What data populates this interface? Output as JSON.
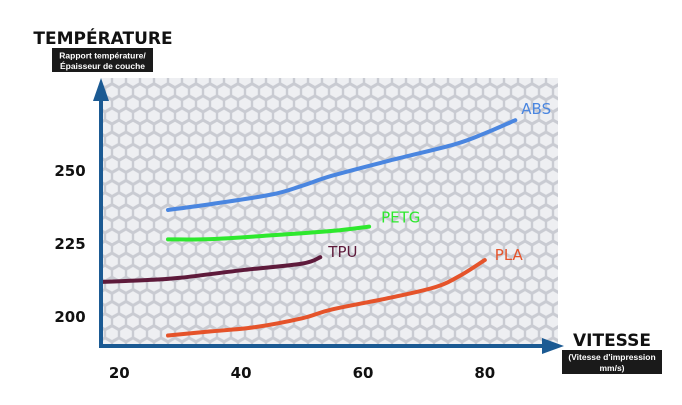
{
  "chart_data": {
    "type": "line",
    "ylabel": "TEMPÉRATURE",
    "ylabel_sub": [
      "Rapport température/",
      "Épaisseur de couche"
    ],
    "xlabel": "VITESSE",
    "xlabel_sub": [
      "(Vitesse d'impression",
      "mm/s)"
    ],
    "x_ticks": [
      20,
      40,
      60,
      80
    ],
    "y_ticks": [
      200,
      225,
      250
    ],
    "xlim": [
      17,
      93
    ],
    "ylim": [
      190,
      282
    ],
    "grid": false,
    "background": "hexagon-pattern",
    "series": [
      {
        "name": "ABS",
        "color": "#4a86e0",
        "points": [
          [
            28,
            236.7
          ],
          [
            35,
            238.7
          ],
          [
            45,
            242
          ],
          [
            50,
            245
          ],
          [
            55,
            248.5
          ],
          [
            65,
            254
          ],
          [
            75,
            259.2
          ],
          [
            80,
            263
          ],
          [
            85,
            267.5
          ]
        ]
      },
      {
        "name": "PETG",
        "color": "#2ee82e",
        "points": [
          [
            28,
            226.6
          ],
          [
            35,
            226.7
          ],
          [
            45,
            228
          ],
          [
            55,
            229.5
          ],
          [
            61,
            231
          ]
        ]
      },
      {
        "name": "TPU",
        "color": "#5e1a3b",
        "points": [
          [
            17,
            212
          ],
          [
            25,
            212.7
          ],
          [
            30,
            213.4
          ],
          [
            40,
            216
          ],
          [
            50,
            218.3
          ],
          [
            53,
            220.5
          ]
        ]
      },
      {
        "name": "PLA",
        "color": "#e5532a",
        "points": [
          [
            28,
            193.6
          ],
          [
            35,
            195
          ],
          [
            42,
            196.4
          ],
          [
            50,
            199.5
          ],
          [
            55,
            202.6
          ],
          [
            65,
            206.8
          ],
          [
            72,
            210.3
          ],
          [
            76,
            214.2
          ],
          [
            80,
            219.5
          ]
        ]
      }
    ]
  }
}
